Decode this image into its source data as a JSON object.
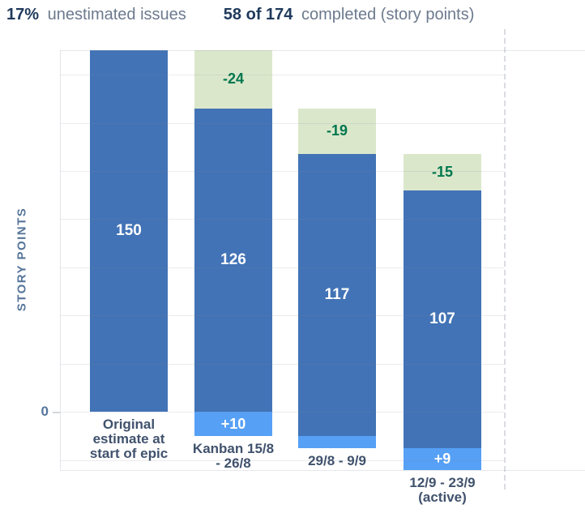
{
  "header": {
    "unestimated_pct": "17%",
    "unestimated_label": "unestimated issues",
    "completed_count": "58 of 174",
    "completed_label": "completed (story points)"
  },
  "chart_data": {
    "type": "bar",
    "stacked": true,
    "title": "",
    "xlabel": "",
    "ylabel": "STORY POINTS",
    "ylim": [
      -24,
      150
    ],
    "gridline_step": 20,
    "grid": true,
    "zero_tick_label": "0",
    "legend_position": "none",
    "categories": [
      "Original estimate at start of epic",
      "Kanban 15/8 - 26/8",
      "29/8 - 9/9",
      "12/9 - 23/9 (active)"
    ],
    "bars": [
      {
        "category_lines": [
          "Original",
          "estimate at",
          "start of epic"
        ],
        "segments": [
          {
            "kind": "remaining",
            "from": 0,
            "to": 150,
            "label": "150"
          }
        ]
      },
      {
        "category_lines": [
          "Kanban 15/8",
          "- 26/8"
        ],
        "segments": [
          {
            "kind": "completed",
            "from": 126,
            "to": 150,
            "label": "-24"
          },
          {
            "kind": "remaining",
            "from": 0,
            "to": 126,
            "label": "126"
          },
          {
            "kind": "added",
            "from": -10,
            "to": 0,
            "label": "+10"
          }
        ]
      },
      {
        "category_lines": [
          "29/8 - 9/9"
        ],
        "segments": [
          {
            "kind": "completed",
            "from": 107,
            "to": 126,
            "label": "-19"
          },
          {
            "kind": "remaining",
            "from": -10,
            "to": 107,
            "label": "117"
          },
          {
            "kind": "added",
            "from": -15,
            "to": -10,
            "label": ""
          }
        ]
      },
      {
        "category_lines": [
          "12/9 - 23/9",
          "(active)"
        ],
        "segments": [
          {
            "kind": "completed",
            "from": 92,
            "to": 107,
            "label": "-15"
          },
          {
            "kind": "remaining",
            "from": -15,
            "to": 92,
            "label": "107"
          },
          {
            "kind": "added",
            "from": -24,
            "to": -15,
            "label": "+9"
          }
        ]
      }
    ],
    "colors": {
      "remaining": "#4273b6",
      "added": "#56a0f6",
      "completed": "#dbe7cb",
      "completed_text": "#00774e",
      "accent_text": "#203a5c",
      "muted_text": "#6c7a8e",
      "axis_text": "#56759a",
      "category_text": "#40526d"
    }
  }
}
